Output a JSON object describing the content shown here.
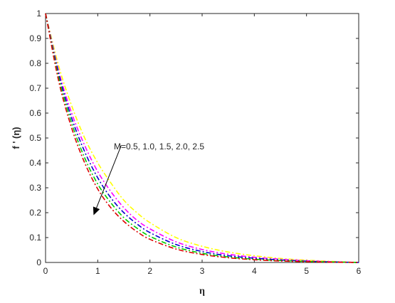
{
  "chart_data": {
    "type": "line",
    "title": "",
    "xlabel": "η",
    "ylabel": "f ' (η)",
    "xlim": [
      0,
      6
    ],
    "ylim": [
      0,
      1
    ],
    "x_ticks": [
      0,
      1,
      2,
      3,
      4,
      5,
      6
    ],
    "y_ticks": [
      0,
      0.1,
      0.2,
      0.3,
      0.4,
      0.5,
      0.6,
      0.7,
      0.8,
      0.9,
      1
    ],
    "grid": false,
    "legend": "none",
    "line_style": "dash-dot",
    "annotation": {
      "text": "M=0.5, 1.0, 1.5, 2.0, 2.5",
      "arrow_from": [
        1.45,
        0.47
      ],
      "arrow_to": [
        0.92,
        0.19
      ]
    },
    "x": [
      0,
      0.25,
      0.5,
      0.75,
      1,
      1.25,
      1.5,
      1.75,
      2,
      2.5,
      3,
      3.5,
      4,
      4.5,
      5,
      5.5,
      6
    ],
    "series": [
      {
        "color": "#ffff00",
        "values": [
          1.0,
          0.79,
          0.63,
          0.5,
          0.4,
          0.32,
          0.25,
          0.2,
          0.16,
          0.1,
          0.065,
          0.042,
          0.027,
          0.016,
          0.009,
          0.004,
          0.0
        ]
      },
      {
        "color": "#ff00ff",
        "values": [
          1.0,
          0.77,
          0.6,
          0.47,
          0.365,
          0.285,
          0.22,
          0.17,
          0.135,
          0.083,
          0.052,
          0.033,
          0.021,
          0.013,
          0.007,
          0.003,
          0.0
        ]
      },
      {
        "color": "#0000cc",
        "values": [
          1.0,
          0.76,
          0.58,
          0.445,
          0.34,
          0.26,
          0.2,
          0.155,
          0.12,
          0.072,
          0.044,
          0.027,
          0.017,
          0.01,
          0.005,
          0.002,
          0.0
        ]
      },
      {
        "color": "#00cc00",
        "values": [
          1.0,
          0.745,
          0.56,
          0.42,
          0.315,
          0.24,
          0.18,
          0.138,
          0.105,
          0.062,
          0.037,
          0.022,
          0.013,
          0.008,
          0.004,
          0.002,
          0.0
        ]
      },
      {
        "color": "#dd0000",
        "values": [
          1.0,
          0.73,
          0.54,
          0.4,
          0.295,
          0.22,
          0.165,
          0.124,
          0.093,
          0.054,
          0.032,
          0.019,
          0.011,
          0.006,
          0.003,
          0.001,
          0.0
        ]
      }
    ]
  }
}
